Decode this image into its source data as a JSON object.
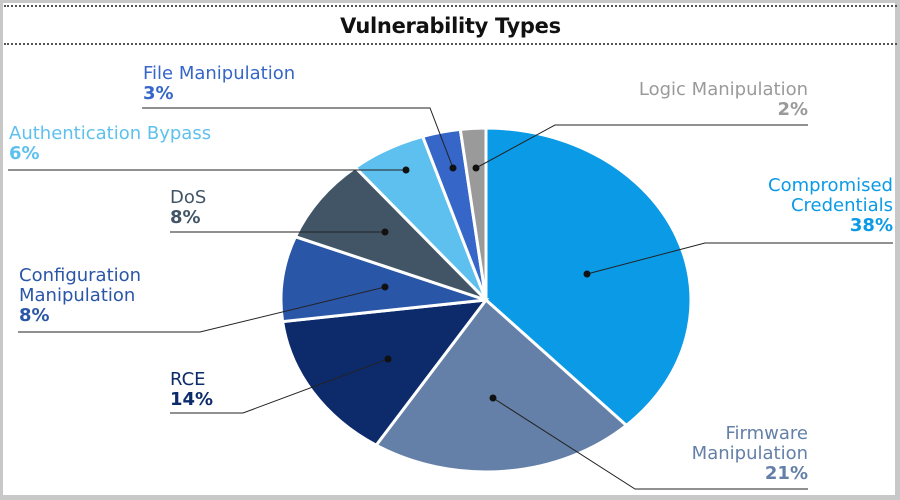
{
  "chart_data": {
    "type": "pie",
    "title": "Vulnerability Types",
    "categories": [
      "Compromised Credentials",
      "Firmware Manipulation",
      "RCE",
      "Configuration Manipulation",
      "DoS",
      "Authentication Bypass",
      "File Manipulation",
      "Logic Manipulation"
    ],
    "values": [
      38,
      21,
      14,
      8,
      8,
      6,
      3,
      2
    ],
    "unit": "%",
    "colors": [
      "#0B9AE6",
      "#6480A8",
      "#0D2B6B",
      "#2A56A8",
      "#415566",
      "#5EC0EE",
      "#3566C8",
      "#9A9A9A"
    ],
    "start_angle": "12 o'clock, clockwise",
    "legend": "leader-line callouts"
  },
  "title": "Vulnerability Types",
  "labels": {
    "file": {
      "name": "File Manipulation",
      "pct": "3%"
    },
    "auth": {
      "name": "Authentication Bypass",
      "pct": "6%"
    },
    "dos": {
      "name": "DoS",
      "pct": "8%"
    },
    "config": {
      "name1": "Configuration",
      "name2": "Manipulation",
      "pct": "8%"
    },
    "rce": {
      "name": "RCE",
      "pct": "14%"
    },
    "logic": {
      "name": "Logic Manipulation",
      "pct": "2%"
    },
    "compromised": {
      "name1": "Compromised",
      "name2": "Credentials",
      "pct": "38%"
    },
    "firmware": {
      "name1": "Firmware",
      "name2": "Manipulation",
      "pct": "21%"
    }
  }
}
